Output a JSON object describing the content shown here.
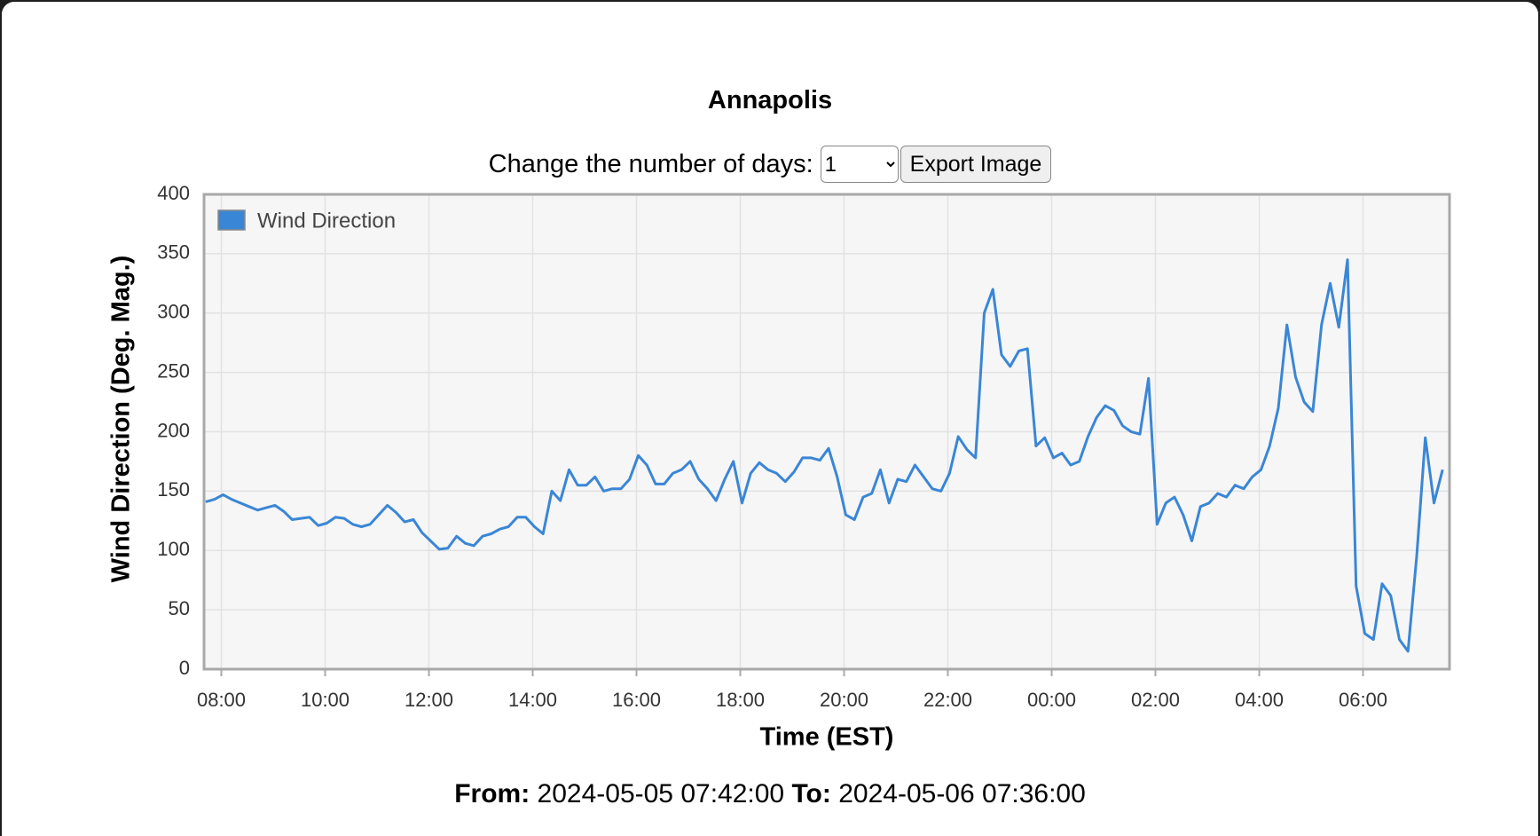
{
  "title": "Annapolis",
  "controls": {
    "label": "Change the number of days:",
    "days": "1",
    "button": "Export Image"
  },
  "footer": {
    "from_label": "From:",
    "from": "2024-05-05 07:42:00",
    "to_label": "To:",
    "to": "2024-05-06 07:36:00"
  },
  "chart_data": {
    "type": "line",
    "x_label": "Time (EST)",
    "y_label": "Wind Direction (Deg. Mag.)",
    "xlim": [
      "2024-05-05 07:40",
      "2024-05-06 07:40"
    ],
    "xticks": [
      {
        "value": "2024-05-05 08:00",
        "label": "08:00"
      },
      {
        "value": "2024-05-05 10:00",
        "label": "10:00"
      },
      {
        "value": "2024-05-05 12:00",
        "label": "12:00"
      },
      {
        "value": "2024-05-05 14:00",
        "label": "14:00"
      },
      {
        "value": "2024-05-05 16:00",
        "label": "16:00"
      },
      {
        "value": "2024-05-05 18:00",
        "label": "18:00"
      },
      {
        "value": "2024-05-05 20:00",
        "label": "20:00"
      },
      {
        "value": "2024-05-05 22:00",
        "label": "22:00"
      },
      {
        "value": "2024-05-06 00:00",
        "label": "00:00"
      },
      {
        "value": "2024-05-06 02:00",
        "label": "02:00"
      },
      {
        "value": "2024-05-06 04:00",
        "label": "04:00"
      },
      {
        "value": "2024-05-06 06:00",
        "label": "06:00"
      }
    ],
    "ylim": [
      0,
      400
    ],
    "yticks": [
      0,
      50,
      100,
      150,
      200,
      250,
      300,
      350,
      400
    ],
    "grid": true,
    "legend": "top-left",
    "x": [
      "2024-05-05 07:42",
      "2024-05-05 07:52",
      "2024-05-05 08:02",
      "2024-05-05 08:12",
      "2024-05-05 08:22",
      "2024-05-05 08:32",
      "2024-05-05 08:42",
      "2024-05-05 08:52",
      "2024-05-05 09:02",
      "2024-05-05 09:12",
      "2024-05-05 09:22",
      "2024-05-05 09:32",
      "2024-05-05 09:42",
      "2024-05-05 09:52",
      "2024-05-05 10:02",
      "2024-05-05 10:12",
      "2024-05-05 10:22",
      "2024-05-05 10:32",
      "2024-05-05 10:42",
      "2024-05-05 10:52",
      "2024-05-05 11:02",
      "2024-05-05 11:12",
      "2024-05-05 11:22",
      "2024-05-05 11:32",
      "2024-05-05 11:42",
      "2024-05-05 11:52",
      "2024-05-05 12:02",
      "2024-05-05 12:12",
      "2024-05-05 12:22",
      "2024-05-05 12:32",
      "2024-05-05 12:42",
      "2024-05-05 12:52",
      "2024-05-05 13:02",
      "2024-05-05 13:12",
      "2024-05-05 13:22",
      "2024-05-05 13:32",
      "2024-05-05 13:42",
      "2024-05-05 13:52",
      "2024-05-05 14:02",
      "2024-05-05 14:12",
      "2024-05-05 14:22",
      "2024-05-05 14:32",
      "2024-05-05 14:42",
      "2024-05-05 14:52",
      "2024-05-05 15:02",
      "2024-05-05 15:12",
      "2024-05-05 15:22",
      "2024-05-05 15:32",
      "2024-05-05 15:42",
      "2024-05-05 15:52",
      "2024-05-05 16:02",
      "2024-05-05 16:12",
      "2024-05-05 16:22",
      "2024-05-05 16:32",
      "2024-05-05 16:42",
      "2024-05-05 16:52",
      "2024-05-05 17:02",
      "2024-05-05 17:12",
      "2024-05-05 17:22",
      "2024-05-05 17:32",
      "2024-05-05 17:42",
      "2024-05-05 17:52",
      "2024-05-05 18:02",
      "2024-05-05 18:12",
      "2024-05-05 18:22",
      "2024-05-05 18:32",
      "2024-05-05 18:42",
      "2024-05-05 18:52",
      "2024-05-05 19:02",
      "2024-05-05 19:12",
      "2024-05-05 19:22",
      "2024-05-05 19:32",
      "2024-05-05 19:42",
      "2024-05-05 19:52",
      "2024-05-05 20:02",
      "2024-05-05 20:12",
      "2024-05-05 20:22",
      "2024-05-05 20:32",
      "2024-05-05 20:42",
      "2024-05-05 20:52",
      "2024-05-05 21:02",
      "2024-05-05 21:12",
      "2024-05-05 21:22",
      "2024-05-05 21:32",
      "2024-05-05 21:42",
      "2024-05-05 21:52",
      "2024-05-05 22:02",
      "2024-05-05 22:12",
      "2024-05-05 22:22",
      "2024-05-05 22:32",
      "2024-05-05 22:42",
      "2024-05-05 22:52",
      "2024-05-05 23:02",
      "2024-05-05 23:12",
      "2024-05-05 23:22",
      "2024-05-05 23:32",
      "2024-05-05 23:42",
      "2024-05-05 23:52",
      "2024-05-06 00:02",
      "2024-05-06 00:12",
      "2024-05-06 00:22",
      "2024-05-06 00:32",
      "2024-05-06 00:42",
      "2024-05-06 00:52",
      "2024-05-06 01:02",
      "2024-05-06 01:12",
      "2024-05-06 01:22",
      "2024-05-06 01:32",
      "2024-05-06 01:42",
      "2024-05-06 01:52",
      "2024-05-06 02:02",
      "2024-05-06 02:12",
      "2024-05-06 02:22",
      "2024-05-06 02:32",
      "2024-05-06 02:42",
      "2024-05-06 02:52",
      "2024-05-06 03:02",
      "2024-05-06 03:12",
      "2024-05-06 03:22",
      "2024-05-06 03:32",
      "2024-05-06 03:42",
      "2024-05-06 03:52",
      "2024-05-06 04:02",
      "2024-05-06 04:12",
      "2024-05-06 04:22",
      "2024-05-06 04:32",
      "2024-05-06 04:42",
      "2024-05-06 04:52",
      "2024-05-06 05:02",
      "2024-05-06 05:12",
      "2024-05-06 05:22",
      "2024-05-06 05:32",
      "2024-05-06 05:42",
      "2024-05-06 05:52",
      "2024-05-06 06:02",
      "2024-05-06 06:12",
      "2024-05-06 06:22",
      "2024-05-06 06:32",
      "2024-05-06 06:42",
      "2024-05-06 06:52",
      "2024-05-06 07:02",
      "2024-05-06 07:12",
      "2024-05-06 07:22",
      "2024-05-06 07:32"
    ],
    "series": [
      {
        "name": "Wind Direction",
        "color": "#3a86d6",
        "values": [
          141,
          143,
          147,
          143,
          140,
          137,
          134,
          136,
          138,
          133,
          126,
          127,
          128,
          121,
          123,
          128,
          127,
          122,
          120,
          122,
          130,
          138,
          132,
          124,
          126,
          115,
          108,
          101,
          102,
          112,
          106,
          104,
          112,
          114,
          118,
          120,
          128,
          128,
          120,
          114,
          150,
          142,
          168,
          155,
          155,
          162,
          150,
          152,
          152,
          160,
          180,
          172,
          156,
          156,
          165,
          168,
          175,
          160,
          152,
          142,
          160,
          175,
          140,
          165,
          174,
          168,
          165,
          158,
          166,
          178,
          178,
          176,
          186,
          162,
          130,
          126,
          145,
          148,
          168,
          140,
          160,
          158,
          172,
          162,
          152,
          150,
          165,
          196,
          185,
          178,
          300,
          320,
          265,
          255,
          268,
          270,
          188,
          195,
          178,
          182,
          172,
          175,
          196,
          212,
          222,
          218,
          205,
          200,
          198,
          245,
          122,
          140,
          145,
          130,
          108,
          137,
          140,
          148,
          145,
          155,
          152,
          162,
          168,
          188,
          220,
          290,
          246,
          225,
          217,
          290,
          325,
          288,
          345,
          70,
          30,
          25,
          72,
          62,
          25,
          15,
          95,
          195,
          140,
          168
        ]
      }
    ]
  }
}
